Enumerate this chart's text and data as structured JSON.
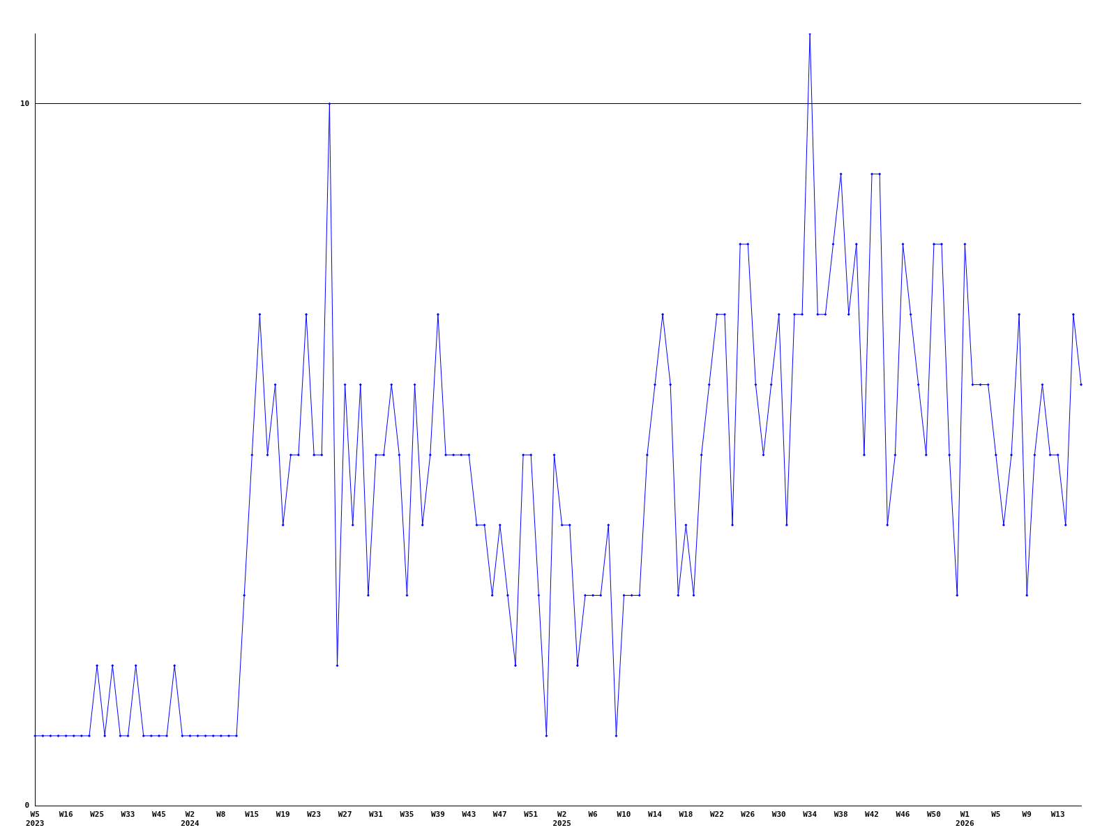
{
  "chart_data": {
    "type": "line",
    "categories": [
      "W5\n2023",
      null,
      null,
      null,
      "W16",
      null,
      null,
      null,
      "W25",
      null,
      null,
      null,
      "W33",
      null,
      null,
      null,
      "W45",
      null,
      null,
      null,
      "W2\n2024",
      null,
      null,
      null,
      "W8",
      null,
      null,
      null,
      "W15",
      null,
      null,
      null,
      "W19",
      null,
      null,
      null,
      "W23",
      null,
      null,
      null,
      "W27",
      null,
      null,
      null,
      "W31",
      null,
      null,
      null,
      "W35",
      null,
      null,
      null,
      "W39",
      null,
      null,
      null,
      "W43",
      null,
      null,
      null,
      "W47",
      null,
      null,
      null,
      "W51",
      null,
      null,
      null,
      "W2\n2025",
      null,
      null,
      null,
      "W6",
      null,
      null,
      null,
      "W10",
      null,
      null,
      null,
      "W14",
      null,
      null,
      null,
      "W18",
      null,
      null,
      null,
      "W22",
      null,
      null,
      null,
      "W26",
      null,
      null,
      null,
      "W30",
      null,
      null,
      null,
      "W34",
      null,
      null,
      null,
      "W38",
      null,
      null,
      null,
      "W42",
      null,
      null,
      null,
      "W46",
      null,
      null,
      null,
      "W50",
      null,
      null,
      null,
      "W1\n2026",
      null,
      null,
      null,
      "W5",
      null,
      null,
      null,
      "W9",
      null,
      null,
      null,
      "W13",
      null,
      null,
      null
    ],
    "series": [
      {
        "color": "#0000ff",
        "values": [
          1,
          1,
          1,
          1,
          1,
          1,
          1,
          1,
          2,
          1,
          2,
          1,
          1,
          2,
          1,
          1,
          1,
          1,
          2,
          1,
          1,
          1,
          1,
          1,
          1,
          1,
          1,
          3,
          5,
          7,
          5,
          6,
          4,
          5,
          5,
          7,
          5,
          5,
          10,
          2,
          6,
          4,
          6,
          3,
          5,
          5,
          6,
          5,
          3,
          6,
          4,
          5,
          7,
          5,
          5,
          5,
          5,
          4,
          4,
          3,
          4,
          3,
          2,
          5,
          5,
          3,
          1,
          5,
          4,
          4,
          2,
          3,
          3,
          3,
          4,
          1,
          3,
          3,
          3,
          5,
          6,
          7,
          6,
          3,
          4,
          3,
          5,
          6,
          7,
          7,
          4,
          8,
          8,
          6,
          5,
          6,
          7,
          4,
          7,
          7,
          11,
          7,
          7,
          8,
          9,
          7,
          8,
          5,
          9,
          9,
          4,
          5,
          8,
          7,
          6,
          5,
          8,
          8,
          5,
          3,
          8,
          6,
          6,
          6,
          5,
          4,
          5,
          7,
          3,
          5,
          6,
          5,
          5,
          4,
          7,
          6
        ]
      }
    ],
    "ylim": [
      0,
      11
    ],
    "yticks": [
      0,
      10
    ],
    "grid": "y",
    "legend": false,
    "marker": "diamond",
    "line_style": "solid"
  }
}
